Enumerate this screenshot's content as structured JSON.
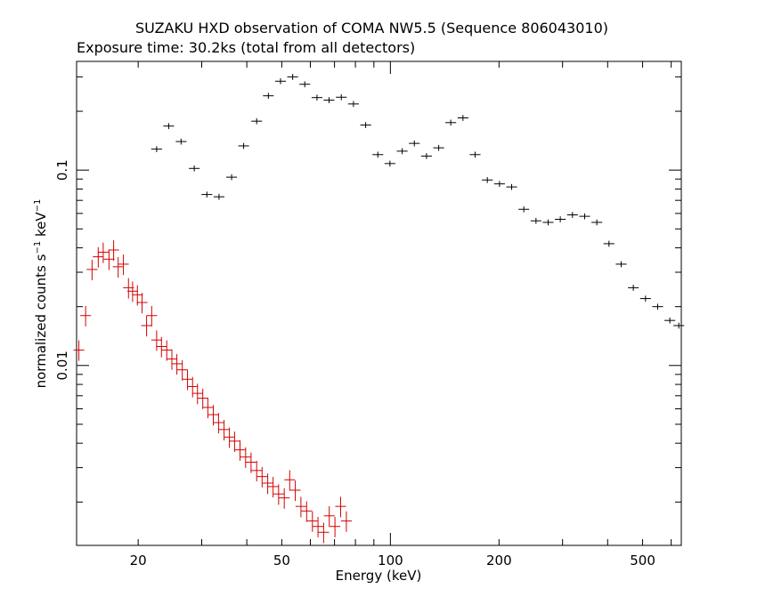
{
  "title": "SUZAKU HXD observation of COMA NW5.5 (Sequence 806043010)",
  "subtitle": "Exposure time: 30.2ks (total from all detectors)",
  "chart_data": {
    "type": "scatter",
    "title": "SUZAKU HXD observation of COMA NW5.5 (Sequence 806043010)",
    "subtitle": "Exposure time: 30.2ks (total from all detectors)",
    "xlabel": "Energy (keV)",
    "ylabel": "normalized counts s⁻¹ keV⁻¹",
    "ylabel_parts": [
      "normalized counts s",
      "−1",
      " keV",
      "−1"
    ],
    "xscale": "log",
    "yscale": "log",
    "xlim": [
      13.5,
      640
    ],
    "ylim": [
      0.0012,
      0.36
    ],
    "x_ticks": [
      20,
      50,
      100,
      200,
      500
    ],
    "x_tick_labels": [
      "20",
      "50",
      "100",
      "200",
      "500"
    ],
    "y_ticks": [
      0.1,
      0.01
    ],
    "y_tick_labels": [
      "0.1",
      "0.01"
    ],
    "grid": false,
    "series": [
      {
        "color": "#d40000",
        "x": [
          13.7,
          14.3,
          14.9,
          15.5,
          16.0,
          16.6,
          17.1,
          17.6,
          18.2,
          18.8,
          19.3,
          19.9,
          20.5,
          21.1,
          21.8,
          22.5,
          23.2,
          24.0,
          24.8,
          25.6,
          26.5,
          27.4,
          28.3,
          29.2,
          30.2,
          31.2,
          32.3,
          33.4,
          34.6,
          35.8,
          37.0,
          38.3,
          39.7,
          41.1,
          42.6,
          44.1,
          45.7,
          47.3,
          49.0,
          50.8,
          52.6,
          54.5,
          56.5,
          58.6,
          60.8,
          63.0,
          65.3,
          67.7,
          70.2,
          72.8,
          75.5
        ],
        "y": [
          0.012,
          0.018,
          0.031,
          0.036,
          0.038,
          0.035,
          0.039,
          0.032,
          0.033,
          0.025,
          0.024,
          0.023,
          0.021,
          0.016,
          0.018,
          0.0135,
          0.0125,
          0.012,
          0.0108,
          0.0102,
          0.0095,
          0.0085,
          0.0078,
          0.0072,
          0.0068,
          0.0061,
          0.0056,
          0.0051,
          0.0047,
          0.0043,
          0.0041,
          0.0037,
          0.0034,
          0.0032,
          0.0029,
          0.0027,
          0.0025,
          0.0024,
          0.0022,
          0.0021,
          0.0026,
          0.0023,
          0.0019,
          0.0018,
          0.0016,
          0.0015,
          0.0014,
          0.0017,
          0.0015,
          0.0019,
          0.0016
        ]
      },
      {
        "color": "#000000",
        "x": [
          22.5,
          24.3,
          26.3,
          28.6,
          31.0,
          33.5,
          36.3,
          39.2,
          42.6,
          45.9,
          49.6,
          53.6,
          57.9,
          62.6,
          67.6,
          73.1,
          79.0,
          85.4,
          92.3,
          99.7,
          107.8,
          116.5,
          125.9,
          136.1,
          147.0,
          158.9,
          171.7,
          185.6,
          200.6,
          216.8,
          234.3,
          253.2,
          273.6,
          295.7,
          319.6,
          345.4,
          373.3,
          403.4,
          436.0,
          471.2,
          509.3,
          550.4,
          594.8,
          630.0
        ],
        "y": [
          0.128,
          0.168,
          0.14,
          0.102,
          0.075,
          0.073,
          0.092,
          0.133,
          0.178,
          0.24,
          0.285,
          0.3,
          0.275,
          0.235,
          0.228,
          0.236,
          0.218,
          0.17,
          0.12,
          0.108,
          0.125,
          0.137,
          0.118,
          0.13,
          0.175,
          0.185,
          0.12,
          0.089,
          0.085,
          0.082,
          0.063,
          0.055,
          0.054,
          0.056,
          0.059,
          0.058,
          0.054,
          0.042,
          0.033,
          0.025,
          0.022,
          0.02,
          0.017,
          0.016
        ]
      }
    ]
  }
}
